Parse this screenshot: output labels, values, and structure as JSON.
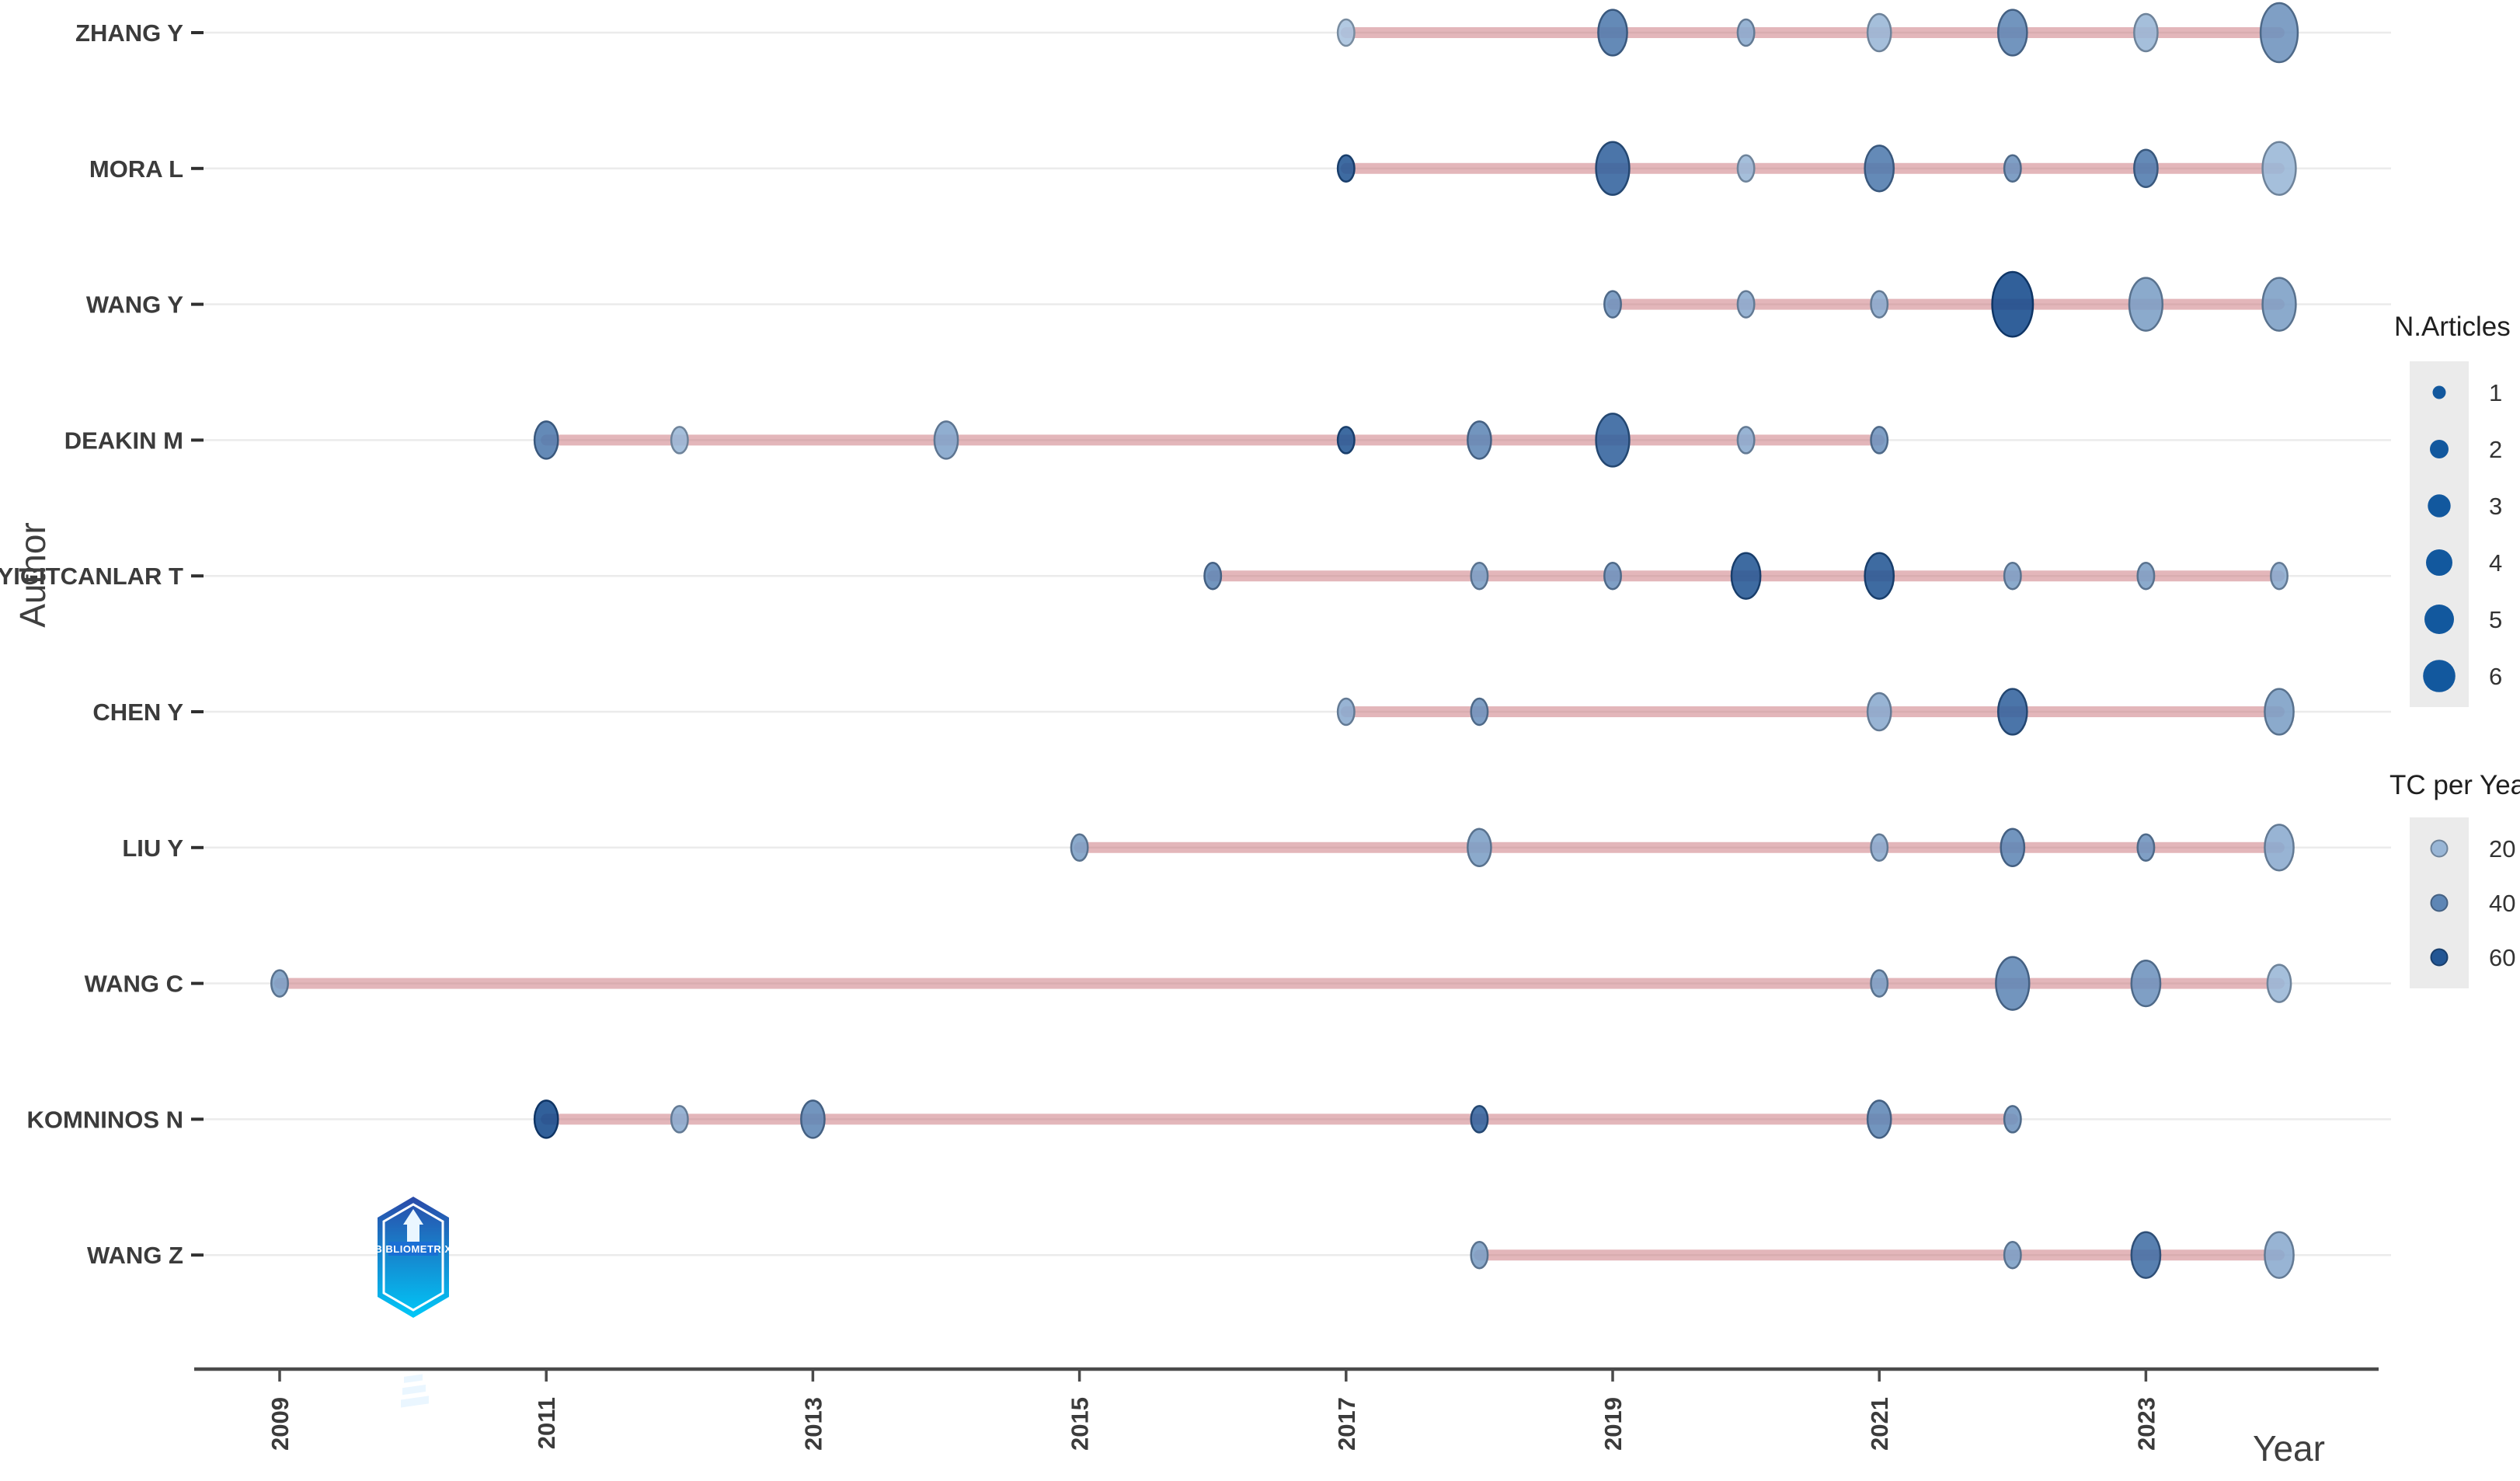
{
  "chart_data": {
    "type": "scatter",
    "subtype": "authors-production-over-time-bubble-timeline",
    "title": "",
    "xlabel": "Year",
    "ylabel": "Author",
    "x_ticks": [
      2009,
      2011,
      2013,
      2015,
      2017,
      2019,
      2021,
      2023
    ],
    "x_range": [
      2008.4,
      2024.8
    ],
    "grid": "horizontal-only",
    "legend_position": "right",
    "legend": {
      "size": {
        "title": "N.Articles",
        "values": [
          1,
          2,
          3,
          4,
          5,
          6
        ]
      },
      "color": {
        "title": "TC per Year",
        "values": [
          20,
          40,
          60
        ]
      }
    },
    "colors": {
      "bubble_scale_light": "#b6cee6",
      "bubble_scale_dark": "#063e84",
      "legend_bubble_fill": "#12589e",
      "timeline": "#c97077",
      "grid": "#ebebeb",
      "axis": "#4a4a4a",
      "text": "#3b3b3b",
      "legend_strip_bg": "#ebebeb"
    },
    "series": [
      {
        "name": "ZHANG Y",
        "line": [
          2017,
          2024
        ],
        "points": [
          {
            "year": 2017,
            "articles": 1,
            "tc_per_year": 15
          },
          {
            "year": 2019,
            "articles": 3,
            "tc_per_year": 45
          },
          {
            "year": 2020,
            "articles": 1,
            "tc_per_year": 25
          },
          {
            "year": 2021,
            "articles": 2,
            "tc_per_year": 20
          },
          {
            "year": 2022,
            "articles": 3,
            "tc_per_year": 40
          },
          {
            "year": 2023,
            "articles": 2,
            "tc_per_year": 20
          },
          {
            "year": 2024,
            "articles": 5,
            "tc_per_year": 35
          }
        ]
      },
      {
        "name": "MORA L",
        "line": [
          2017,
          2024
        ],
        "points": [
          {
            "year": 2017,
            "articles": 1,
            "tc_per_year": 60
          },
          {
            "year": 2019,
            "articles": 4,
            "tc_per_year": 55
          },
          {
            "year": 2020,
            "articles": 1,
            "tc_per_year": 20
          },
          {
            "year": 2021,
            "articles": 3,
            "tc_per_year": 45
          },
          {
            "year": 2022,
            "articles": 1,
            "tc_per_year": 35
          },
          {
            "year": 2023,
            "articles": 2,
            "tc_per_year": 45
          },
          {
            "year": 2024,
            "articles": 4,
            "tc_per_year": 20
          }
        ]
      },
      {
        "name": "WANG Y",
        "line": [
          2019,
          2024
        ],
        "points": [
          {
            "year": 2019,
            "articles": 1,
            "tc_per_year": 35
          },
          {
            "year": 2020,
            "articles": 1,
            "tc_per_year": 25
          },
          {
            "year": 2021,
            "articles": 1,
            "tc_per_year": 25
          },
          {
            "year": 2022,
            "articles": 6,
            "tc_per_year": 65
          },
          {
            "year": 2023,
            "articles": 4,
            "tc_per_year": 30
          },
          {
            "year": 2024,
            "articles": 4,
            "tc_per_year": 30
          }
        ]
      },
      {
        "name": "DEAKIN M",
        "line": [
          2011,
          2021
        ],
        "points": [
          {
            "year": 2011,
            "articles": 2,
            "tc_per_year": 45
          },
          {
            "year": 2012,
            "articles": 1,
            "tc_per_year": 20
          },
          {
            "year": 2014,
            "articles": 2,
            "tc_per_year": 28
          },
          {
            "year": 2017,
            "articles": 1,
            "tc_per_year": 60
          },
          {
            "year": 2018,
            "articles": 2,
            "tc_per_year": 40
          },
          {
            "year": 2019,
            "articles": 4,
            "tc_per_year": 55
          },
          {
            "year": 2020,
            "articles": 1,
            "tc_per_year": 25
          },
          {
            "year": 2021,
            "articles": 1,
            "tc_per_year": 35
          }
        ]
      },
      {
        "name": "YIGITCANLAR T",
        "line": [
          2016,
          2024
        ],
        "points": [
          {
            "year": 2016,
            "articles": 1,
            "tc_per_year": 40
          },
          {
            "year": 2018,
            "articles": 1,
            "tc_per_year": 30
          },
          {
            "year": 2019,
            "articles": 1,
            "tc_per_year": 35
          },
          {
            "year": 2020,
            "articles": 3,
            "tc_per_year": 60
          },
          {
            "year": 2021,
            "articles": 3,
            "tc_per_year": 60
          },
          {
            "year": 2022,
            "articles": 1,
            "tc_per_year": 30
          },
          {
            "year": 2023,
            "articles": 1,
            "tc_per_year": 30
          },
          {
            "year": 2024,
            "articles": 1,
            "tc_per_year": 25
          }
        ]
      },
      {
        "name": "CHEN Y",
        "line": [
          2017,
          2024
        ],
        "points": [
          {
            "year": 2017,
            "articles": 1,
            "tc_per_year": 25
          },
          {
            "year": 2018,
            "articles": 1,
            "tc_per_year": 35
          },
          {
            "year": 2021,
            "articles": 2,
            "tc_per_year": 25
          },
          {
            "year": 2022,
            "articles": 3,
            "tc_per_year": 55
          },
          {
            "year": 2024,
            "articles": 3,
            "tc_per_year": 30
          }
        ]
      },
      {
        "name": "LIU Y",
        "line": [
          2015,
          2024
        ],
        "points": [
          {
            "year": 2015,
            "articles": 1,
            "tc_per_year": 30
          },
          {
            "year": 2018,
            "articles": 2,
            "tc_per_year": 30
          },
          {
            "year": 2021,
            "articles": 1,
            "tc_per_year": 25
          },
          {
            "year": 2022,
            "articles": 2,
            "tc_per_year": 40
          },
          {
            "year": 2023,
            "articles": 1,
            "tc_per_year": 35
          },
          {
            "year": 2024,
            "articles": 3,
            "tc_per_year": 25
          }
        ]
      },
      {
        "name": "WANG C",
        "line": [
          2009,
          2024
        ],
        "points": [
          {
            "year": 2009,
            "articles": 1,
            "tc_per_year": 30
          },
          {
            "year": 2021,
            "articles": 1,
            "tc_per_year": 30
          },
          {
            "year": 2022,
            "articles": 4,
            "tc_per_year": 40
          },
          {
            "year": 2023,
            "articles": 3,
            "tc_per_year": 35
          },
          {
            "year": 2024,
            "articles": 2,
            "tc_per_year": 20
          }
        ]
      },
      {
        "name": "KOMNINOS N",
        "line": [
          2011,
          2022
        ],
        "points": [
          {
            "year": 2011,
            "articles": 2,
            "tc_per_year": 65
          },
          {
            "year": 2012,
            "articles": 1,
            "tc_per_year": 25
          },
          {
            "year": 2013,
            "articles": 2,
            "tc_per_year": 40
          },
          {
            "year": 2018,
            "articles": 1,
            "tc_per_year": 55
          },
          {
            "year": 2021,
            "articles": 2,
            "tc_per_year": 40
          },
          {
            "year": 2022,
            "articles": 1,
            "tc_per_year": 35
          }
        ]
      },
      {
        "name": "WANG Z",
        "line": [
          2018,
          2024
        ],
        "points": [
          {
            "year": 2018,
            "articles": 1,
            "tc_per_year": 30
          },
          {
            "year": 2022,
            "articles": 1,
            "tc_per_year": 30
          },
          {
            "year": 2023,
            "articles": 3,
            "tc_per_year": 50
          },
          {
            "year": 2024,
            "articles": 3,
            "tc_per_year": 25
          }
        ]
      }
    ]
  },
  "logo": {
    "label": "BIBLIOMETRIX",
    "gradient_top": "#2b4aa8",
    "gradient_bottom": "#00c8f8"
  }
}
